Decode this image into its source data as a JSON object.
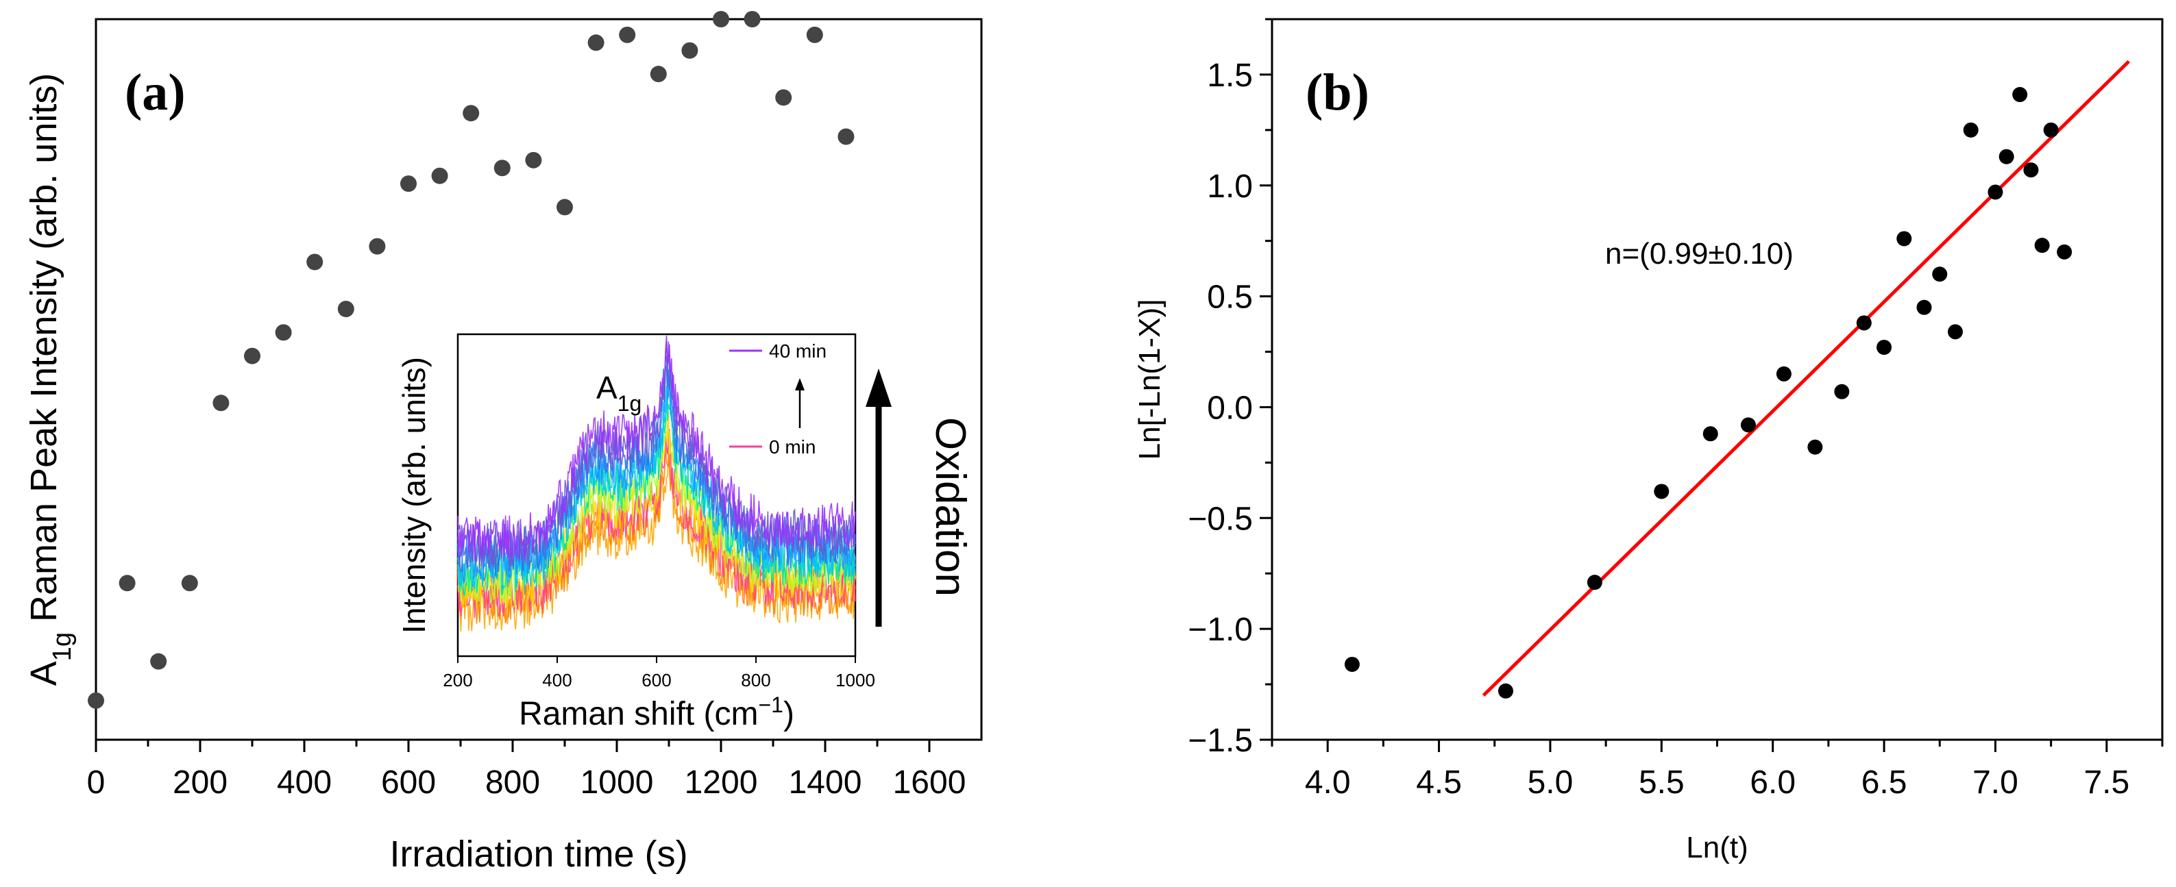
{
  "chart_data": [
    {
      "type": "scatter",
      "panel_label": "(a)",
      "xlabel": "Irradiation time (s)",
      "ylabel": "A1g Raman Peak Intensity (arb. units)",
      "ylabel_parts": {
        "pre": "A",
        "sub": "1g",
        "post": " Raman Peak Intensity (arb. units)"
      },
      "xlim": [
        0,
        1700
      ],
      "ylim": [
        0.08,
        1.0
      ],
      "xticks": [
        0,
        200,
        400,
        600,
        800,
        1000,
        1200,
        1400,
        1600
      ],
      "y_ticks_labeled": false,
      "marker_color": "#444444",
      "series": [
        {
          "name": "A1g peak intensity",
          "x": [
            0,
            60,
            120,
            180,
            240,
            300,
            360,
            420,
            480,
            540,
            600,
            660,
            720,
            780,
            840,
            900,
            960,
            1020,
            1080,
            1140,
            1200,
            1260,
            1320,
            1380,
            1440
          ],
          "y": [
            0.13,
            0.28,
            0.18,
            0.28,
            0.51,
            0.57,
            0.6,
            0.69,
            0.63,
            0.71,
            0.79,
            0.8,
            0.88,
            0.81,
            0.82,
            0.76,
            0.97,
            0.98,
            0.93,
            0.96,
            1.0,
            1.0,
            0.9,
            0.98,
            0.85
          ]
        }
      ],
      "inset": {
        "type": "line",
        "xlabel": "Raman shift (cm−1)",
        "ylabel": "Intensity (arb. units)",
        "xlim": [
          200,
          1000
        ],
        "xticks": [
          200,
          400,
          600,
          800,
          1000
        ],
        "peak_label": "A1g",
        "legend_top": "40 min",
        "legend_bottom": "0 min",
        "legend_top_color": "#9B30FF",
        "legend_bottom_color": "#FF3E96",
        "series_colors": [
          "#FFA500",
          "#FF7F00",
          "#FF3E96",
          "#FFD700",
          "#ADFF2F",
          "#00E5A0",
          "#00BFFF",
          "#1E90FF",
          "#4169E1",
          "#6A5ACD",
          "#9B30FF"
        ],
        "oxidation_label": "Oxidation"
      }
    },
    {
      "type": "scatter",
      "panel_label": "(b)",
      "xlabel": "Ln(t)",
      "ylabel": "Ln[-Ln(1-X)]",
      "xlim": [
        3.75,
        7.75
      ],
      "ylim": [
        -1.5,
        1.75
      ],
      "xticks": [
        4.0,
        4.5,
        5.0,
        5.5,
        6.0,
        6.5,
        7.0,
        7.5
      ],
      "yticks": [
        -1.5,
        -1.0,
        -0.5,
        0.0,
        0.5,
        1.0,
        1.5
      ],
      "marker_color": "#000000",
      "fit_color": "#FF0000",
      "annotation": "n=(0.99±0.10)",
      "series": [
        {
          "name": "data",
          "x": [
            4.11,
            4.8,
            5.2,
            5.5,
            5.72,
            5.89,
            6.05,
            6.19,
            6.31,
            6.41,
            6.5,
            6.59,
            6.68,
            6.75,
            6.82,
            6.89,
            7.0,
            7.05,
            7.11,
            7.16,
            7.21,
            7.25,
            7.31
          ],
          "y": [
            -1.16,
            -1.28,
            -0.79,
            -0.38,
            -0.12,
            -0.08,
            0.15,
            -0.18,
            0.07,
            0.38,
            0.27,
            0.76,
            0.45,
            0.6,
            0.34,
            1.25,
            0.97,
            1.13,
            1.41,
            1.07,
            0.73,
            1.25,
            0.7
          ]
        },
        {
          "name": "linear fit",
          "x": [
            4.7,
            7.6
          ],
          "y": [
            -1.3,
            1.56
          ]
        }
      ]
    }
  ]
}
